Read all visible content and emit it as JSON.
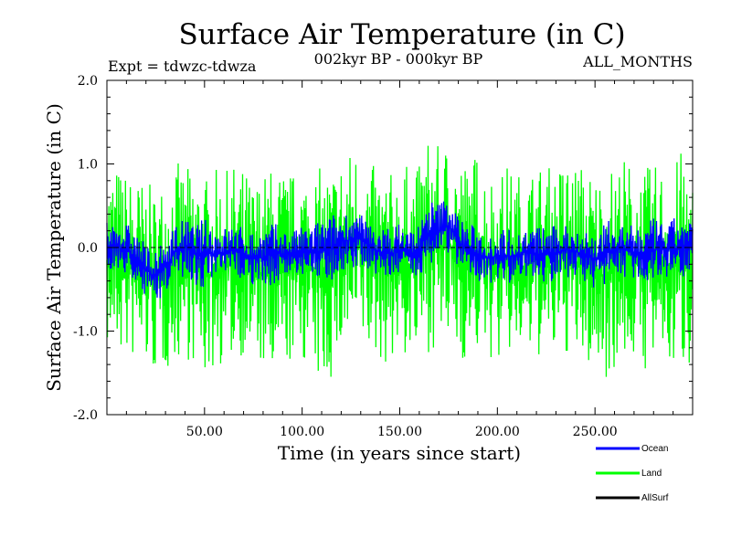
{
  "chart_data": {
    "type": "line",
    "title": "Surface Air Temperature (in C)",
    "subtitle_left": "Expt = tdwzc-tdwza",
    "subtitle_center": "002kyr BP - 000kyr BP",
    "subtitle_right": "ALL_MONTHS",
    "xlabel": "Time (in years since start)",
    "ylabel": "Surface Air Temperature (in C)",
    "xlim": [
      0,
      300
    ],
    "ylim": [
      -2.0,
      2.0
    ],
    "x_ticks": [
      50,
      100,
      150,
      200,
      250
    ],
    "x_tick_labels": [
      "50.00",
      "100.00",
      "150.00",
      "200.00",
      "250.00"
    ],
    "y_ticks": [
      -2,
      -1,
      0,
      1,
      2
    ],
    "y_tick_labels": [
      "-2.0",
      "-1.0",
      "0.0",
      "1.0",
      "2.0"
    ],
    "grid": false,
    "legend_position": "bottom-right",
    "series": [
      {
        "name": "Land",
        "color": "#00ff00",
        "x": [
          0,
          5,
          10,
          15,
          20,
          25,
          30,
          35,
          40,
          45,
          50,
          55,
          60,
          65,
          70,
          75,
          80,
          85,
          90,
          95,
          100,
          105,
          110,
          115,
          120,
          125,
          130,
          135,
          140,
          145,
          150,
          155,
          160,
          165,
          170,
          175,
          180,
          185,
          190,
          195,
          200,
          205,
          210,
          215,
          220,
          225,
          230,
          235,
          240,
          245,
          250,
          255,
          260,
          265,
          270,
          275,
          280,
          285,
          290,
          295,
          300
        ],
        "upper": [
          0.9,
          1.0,
          0.9,
          0.85,
          0.8,
          0.7,
          0.9,
          1.05,
          0.95,
          1.0,
          0.85,
          0.95,
          0.9,
          1.0,
          0.95,
          0.8,
          0.9,
          1.0,
          0.95,
          0.9,
          0.95,
          1.0,
          0.95,
          1.0,
          1.1,
          1.2,
          1.25,
          1.0,
          0.95,
          0.9,
          1.0,
          1.0,
          1.0,
          1.4,
          1.2,
          1.3,
          1.2,
          1.0,
          1.2,
          0.95,
          0.9,
          1.0,
          0.9,
          0.95,
          1.0,
          1.0,
          0.95,
          1.1,
          1.05,
          1.0,
          0.9,
          0.95,
          1.0,
          1.1,
          1.0,
          0.95,
          1.0,
          1.0,
          1.0,
          1.2,
          1.0
        ],
        "lower": [
          -1.2,
          -1.3,
          -1.35,
          -1.4,
          -1.45,
          -1.55,
          -1.5,
          -1.4,
          -1.3,
          -1.45,
          -1.6,
          -1.5,
          -1.4,
          -1.35,
          -1.3,
          -1.35,
          -1.5,
          -1.8,
          -1.5,
          -1.4,
          -1.35,
          -1.5,
          -1.75,
          -1.6,
          -1.3,
          -1.25,
          -1.2,
          -1.35,
          -1.4,
          -1.4,
          -1.3,
          -1.4,
          -1.35,
          -1.25,
          -1.2,
          -1.25,
          -1.35,
          -1.4,
          -1.3,
          -1.35,
          -1.4,
          -1.35,
          -1.3,
          -1.4,
          -1.3,
          -1.45,
          -1.35,
          -1.3,
          -1.4,
          -1.45,
          -1.5,
          -1.6,
          -1.45,
          -1.4,
          -1.35,
          -1.5,
          -1.45,
          -1.45,
          -1.5,
          -1.45,
          -1.4
        ]
      },
      {
        "name": "Ocean",
        "color": "#0000ff",
        "x": [
          0,
          5,
          10,
          15,
          20,
          25,
          30,
          35,
          40,
          45,
          50,
          55,
          60,
          65,
          70,
          75,
          80,
          85,
          90,
          95,
          100,
          105,
          110,
          115,
          120,
          125,
          130,
          135,
          140,
          145,
          150,
          155,
          160,
          165,
          170,
          175,
          180,
          185,
          190,
          195,
          200,
          205,
          210,
          215,
          220,
          225,
          230,
          235,
          240,
          245,
          250,
          255,
          260,
          265,
          270,
          275,
          280,
          285,
          290,
          295,
          300
        ],
        "upper": [
          0.3,
          0.35,
          0.3,
          0.2,
          0.05,
          -0.05,
          0.1,
          0.3,
          0.35,
          0.3,
          0.35,
          0.3,
          0.25,
          0.3,
          0.25,
          0.2,
          0.25,
          0.3,
          0.25,
          0.2,
          0.25,
          0.3,
          0.35,
          0.4,
          0.45,
          0.45,
          0.4,
          0.3,
          0.25,
          0.25,
          0.3,
          0.25,
          0.3,
          0.6,
          0.55,
          0.65,
          0.4,
          0.3,
          0.25,
          0.2,
          0.2,
          0.25,
          0.2,
          0.25,
          0.25,
          0.3,
          0.25,
          0.3,
          0.3,
          0.25,
          0.2,
          0.3,
          0.35,
          0.3,
          0.25,
          0.3,
          0.35,
          0.3,
          0.35,
          0.4,
          0.3
        ],
        "lower": [
          -0.3,
          -0.3,
          -0.35,
          -0.45,
          -0.6,
          -0.65,
          -0.55,
          -0.4,
          -0.35,
          -0.45,
          -0.5,
          -0.45,
          -0.4,
          -0.35,
          -0.4,
          -0.45,
          -0.5,
          -0.45,
          -0.4,
          -0.35,
          -0.35,
          -0.4,
          -0.45,
          -0.4,
          -0.3,
          -0.25,
          -0.2,
          -0.3,
          -0.35,
          -0.4,
          -0.35,
          -0.4,
          -0.35,
          -0.2,
          -0.15,
          -0.1,
          -0.25,
          -0.35,
          -0.4,
          -0.45,
          -0.4,
          -0.45,
          -0.4,
          -0.35,
          -0.4,
          -0.45,
          -0.4,
          -0.35,
          -0.4,
          -0.45,
          -0.5,
          -0.45,
          -0.4,
          -0.35,
          -0.4,
          -0.45,
          -0.4,
          -0.35,
          -0.4,
          -0.35,
          -0.3
        ]
      },
      {
        "name": "AllSurf",
        "color": "#000000",
        "x": [
          0,
          300
        ],
        "y": [
          0.0,
          0.0
        ],
        "dashed": true
      }
    ]
  }
}
